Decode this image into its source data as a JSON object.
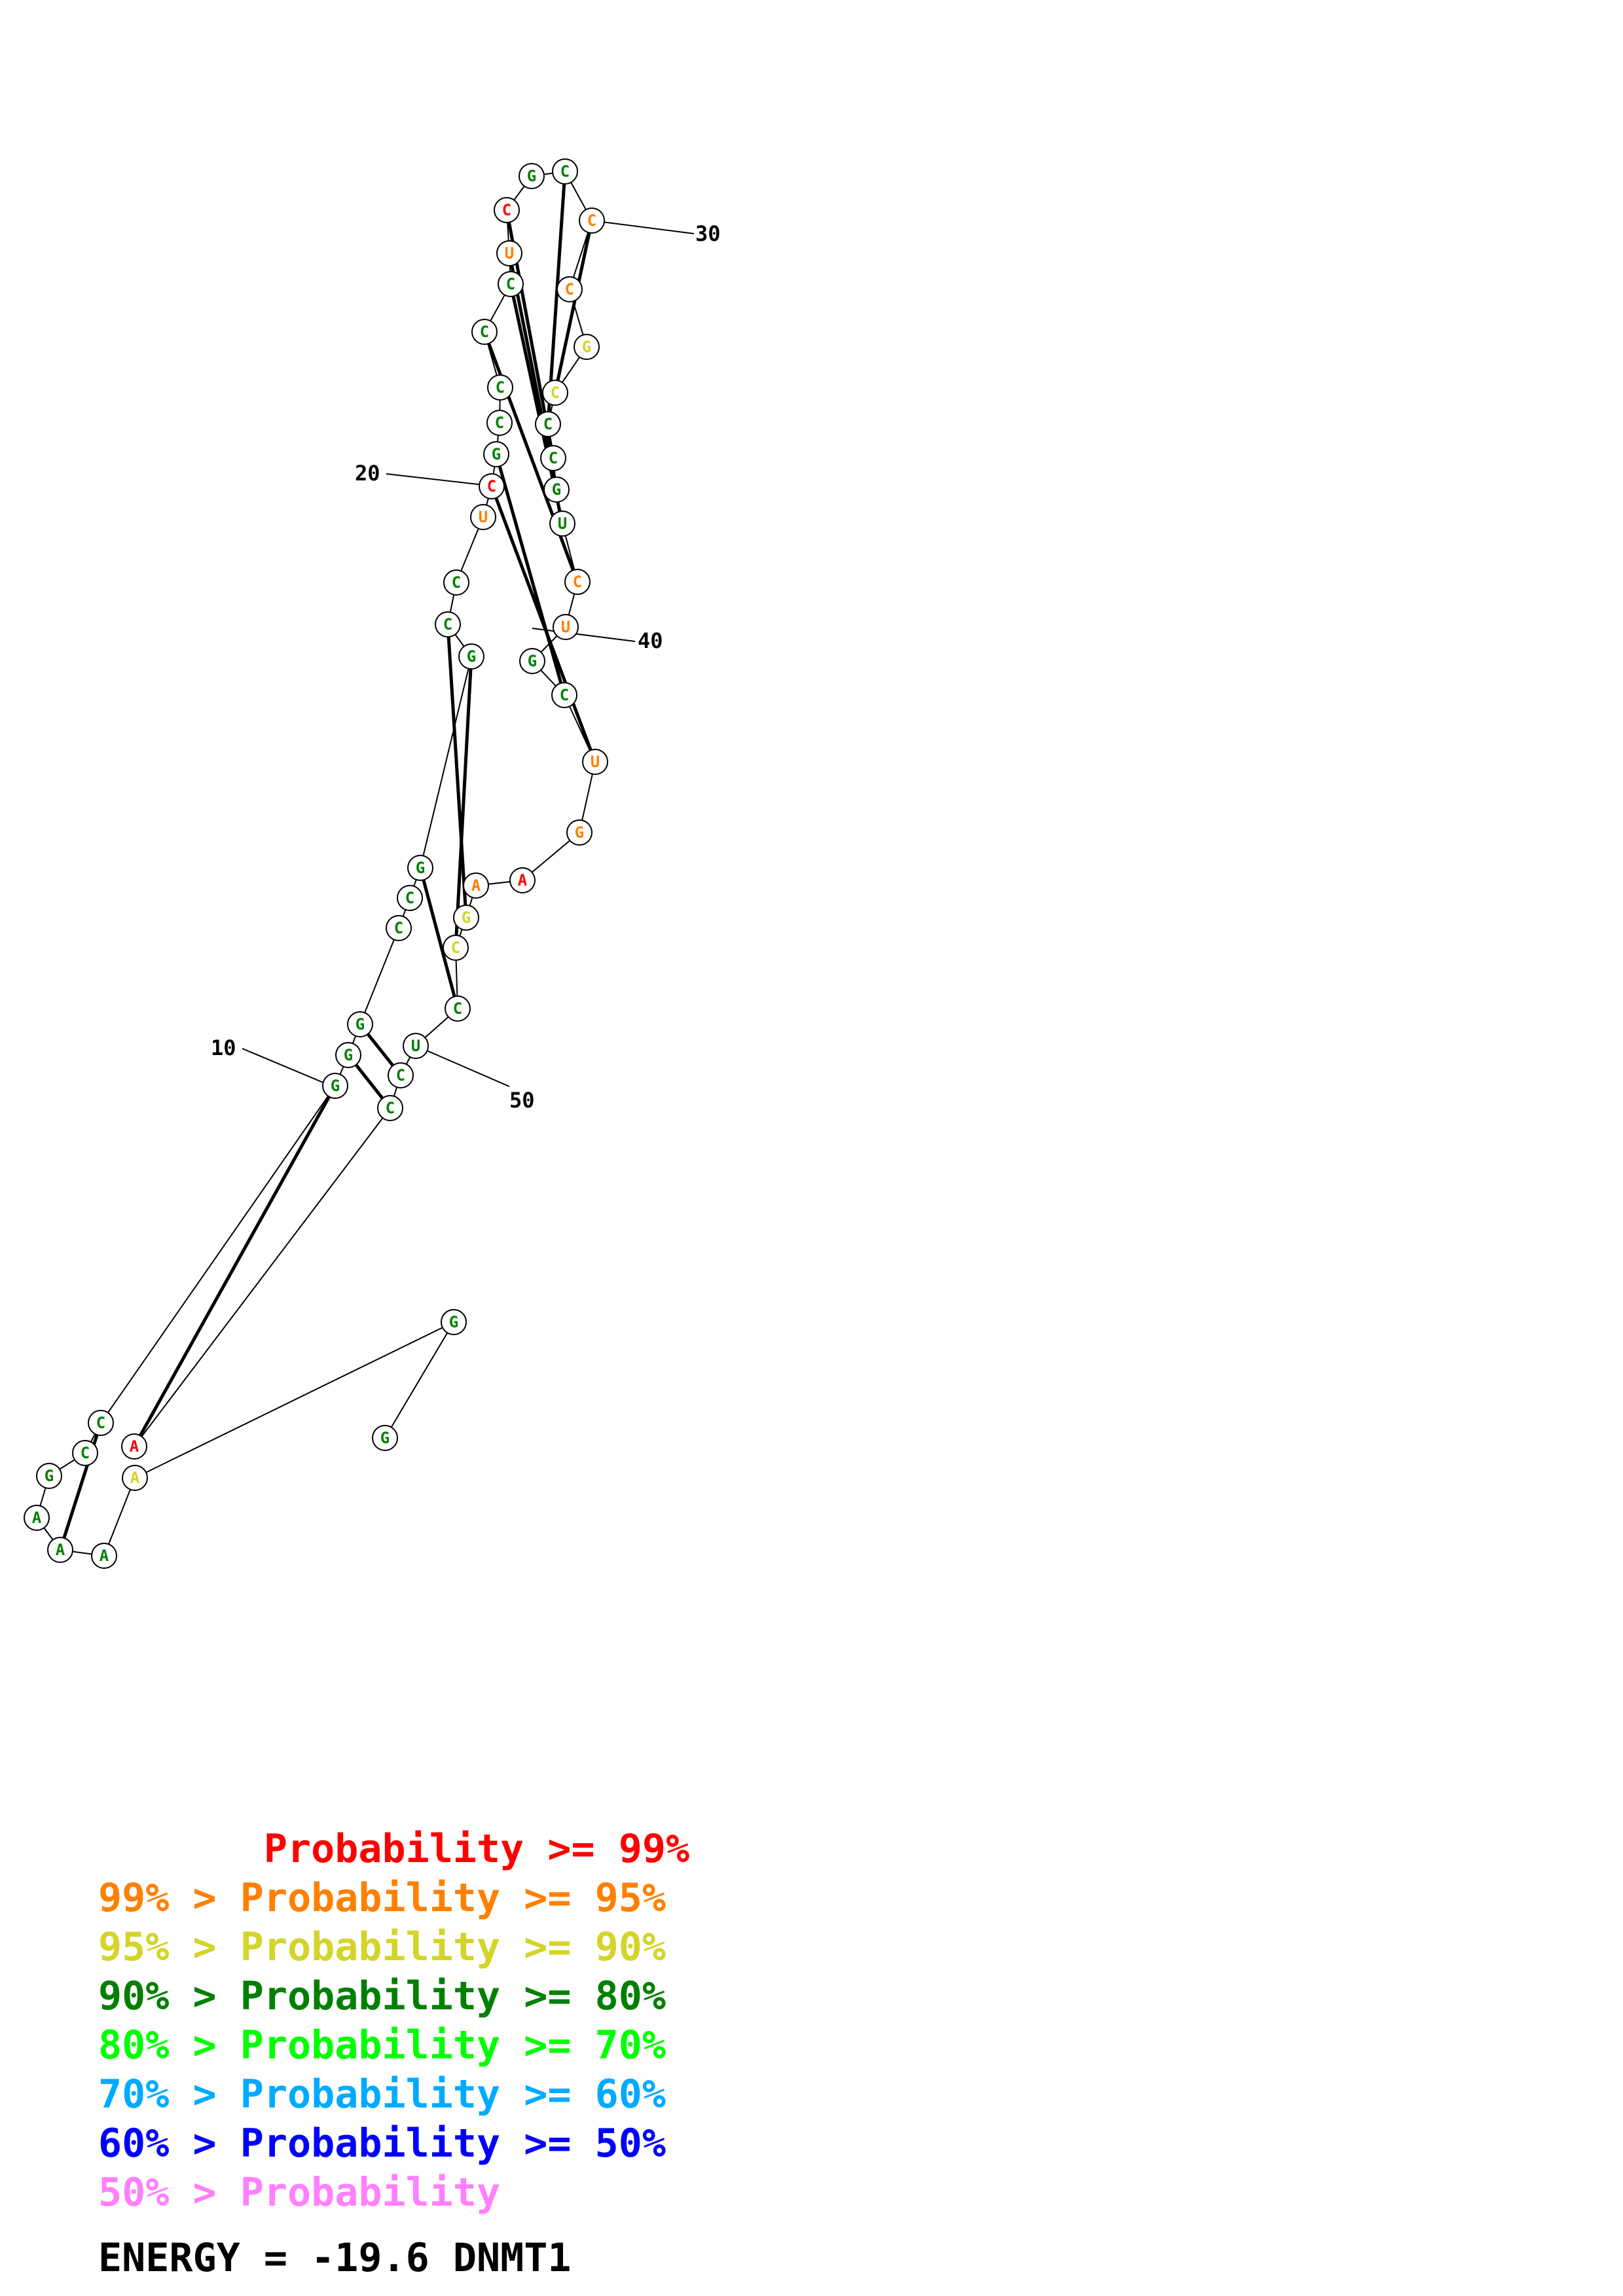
{
  "structure": {
    "name": "DNMT1",
    "energy_label": "ENERGY = -19.6  DNMT1",
    "sequence": [
      "G",
      "G",
      "A",
      "A",
      "A",
      "A",
      "G",
      "C",
      "C",
      "G",
      "G",
      "G",
      "C",
      "C",
      "G",
      "G",
      "C",
      "C",
      "U",
      "C",
      "G",
      "C",
      "C",
      "C",
      "C",
      "U",
      "C",
      "G",
      "C",
      "C",
      "C",
      "G",
      "C",
      "C",
      "C",
      "G",
      "U",
      "C",
      "U",
      "G",
      "C",
      "U",
      "G",
      "A",
      "A",
      "G",
      "C",
      "C",
      "U",
      "C",
      "C",
      "A"
    ],
    "colors": [
      3,
      3,
      2,
      3,
      3,
      3,
      3,
      3,
      3,
      3,
      3,
      3,
      3,
      3,
      3,
      3,
      3,
      3,
      1,
      0,
      3,
      3,
      3,
      3,
      3,
      1,
      0,
      3,
      3,
      1,
      1,
      2,
      2,
      3,
      3,
      3,
      3,
      1,
      1,
      3,
      3,
      1,
      1,
      0,
      1,
      2,
      2,
      3,
      3,
      3,
      3,
      0
    ],
    "position_labels": [
      {
        "pos": 10,
        "text": "10"
      },
      {
        "pos": 20,
        "text": "20"
      },
      {
        "pos": 30,
        "text": "30"
      },
      {
        "pos": 40,
        "text": "40"
      },
      {
        "pos": 50,
        "text": "50"
      }
    ]
  },
  "legend": {
    "palette": [
      "#ff0000",
      "#ff8000",
      "#d4d42a",
      "#008000",
      "#00ff00",
      "#00aaff",
      "#0000ff",
      "#ff80ff"
    ],
    "lines": [
      "       Probability >= 99%",
      "99% > Probability >= 95%",
      "95% > Probability >= 90%",
      "90% > Probability >= 80%",
      "80% > Probability >= 70%",
      "70% > Probability >= 60%",
      "60% > Probability >= 50%",
      "50% > Probability"
    ]
  }
}
